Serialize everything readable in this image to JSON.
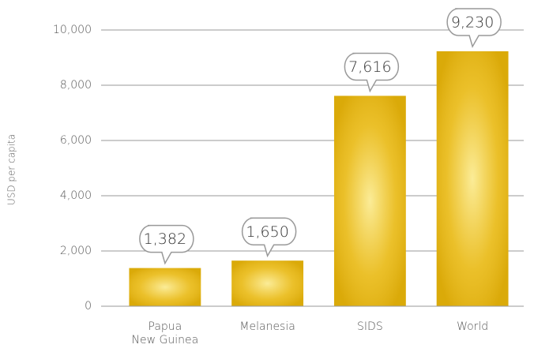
{
  "chart_data": {
    "type": "bar",
    "y_label": "USD per capita",
    "categories": [
      "Papua\nNew Guinea",
      "Melanesia",
      "SIDS",
      "World"
    ],
    "values": [
      1382,
      1650,
      7616,
      9230
    ],
    "value_labels": [
      "1,382",
      "1,650",
      "7,616",
      "9,230"
    ],
    "color": "#e6b40c",
    "ylim": [
      0,
      10000
    ],
    "yticks": [
      0,
      {
        "value": 2000,
        "label": "2,000"
      },
      {
        "value": 4000,
        "label": "4,000"
      },
      {
        "value": 6000,
        "label": "6,000"
      },
      {
        "value": 8000,
        "label": "8,000"
      },
      {
        "value": 10000,
        "label": "10,000"
      }
    ],
    "grid": true
  }
}
